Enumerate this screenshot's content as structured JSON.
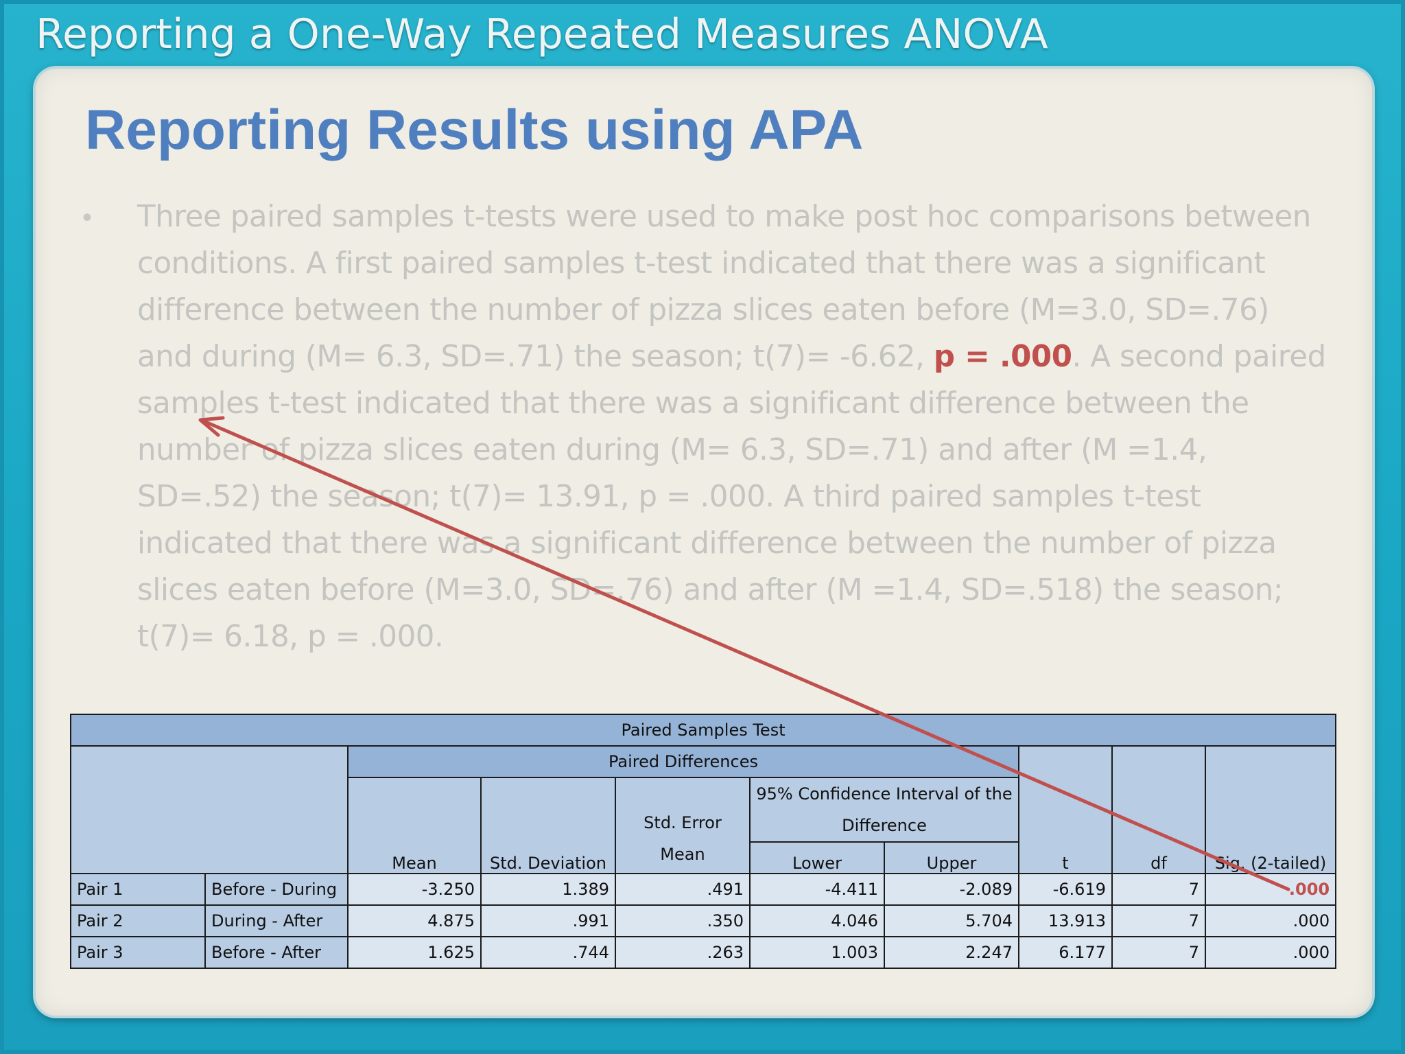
{
  "slide": {
    "header": "Reporting a One-Way Repeated Measures ANOVA",
    "title": "Reporting Results using APA"
  },
  "body": {
    "bullet": "•",
    "part1": "Three paired samples t-tests were used to make post hoc comparisons between conditions. A first paired samples t-test indicated that there was a significant difference between the number of pizza slices eaten before (M=3.0, SD=.76) and during (M= 6.3, SD=.71)  the season; t(7)= -6.62, ",
    "highlight": "p = .000",
    "part2": ". A second paired samples t-test indicated that there was a significant difference between the number of pizza slices eaten during (M= 6.3, SD=.71) and after (M =1.4, SD=.52) the season; t(7)= 13.91, p = .000. A third paired samples t-test indicated that there was a significant difference between the number of pizza slices eaten before (M=3.0, SD=.76) and after (M =1.4, SD=.518) the season; t(7)= 6.18, p = .000."
  },
  "table": {
    "title": "Paired Samples Test",
    "group_header": "Paired Differences",
    "ci_header": "95% Confidence Interval of the Difference",
    "columns": {
      "mean": "Mean",
      "std_dev": "Std. Deviation",
      "std_err": "Std. Error Mean",
      "lower": "Lower",
      "upper": "Upper",
      "t": "t",
      "df": "df",
      "sig": "Sig. (2-tailed)"
    },
    "rows": [
      {
        "pair": "Pair 1",
        "label": "Before - During",
        "mean": "-3.250",
        "sd": "1.389",
        "se": ".491",
        "lower": "-4.411",
        "upper": "-2.089",
        "t": "-6.619",
        "df": "7",
        "sig": ".000"
      },
      {
        "pair": "Pair 2",
        "label": "During - After",
        "mean": "4.875",
        "sd": ".991",
        "se": ".350",
        "lower": "4.046",
        "upper": "5.704",
        "t": "13.913",
        "df": "7",
        "sig": ".000"
      },
      {
        "pair": "Pair 3",
        "label": "Before - After",
        "mean": "1.625",
        "sd": ".744",
        "se": ".263",
        "lower": "1.003",
        "upper": "2.247",
        "t": "6.177",
        "df": "7",
        "sig": ".000"
      }
    ]
  },
  "colors": {
    "title": "#4f7fbf",
    "highlight": "#c0504d",
    "arrow": "#c0504d",
    "table_header": "#95b3d7",
    "table_cell": "#dce6f1",
    "frame": "#1aa7c4"
  }
}
